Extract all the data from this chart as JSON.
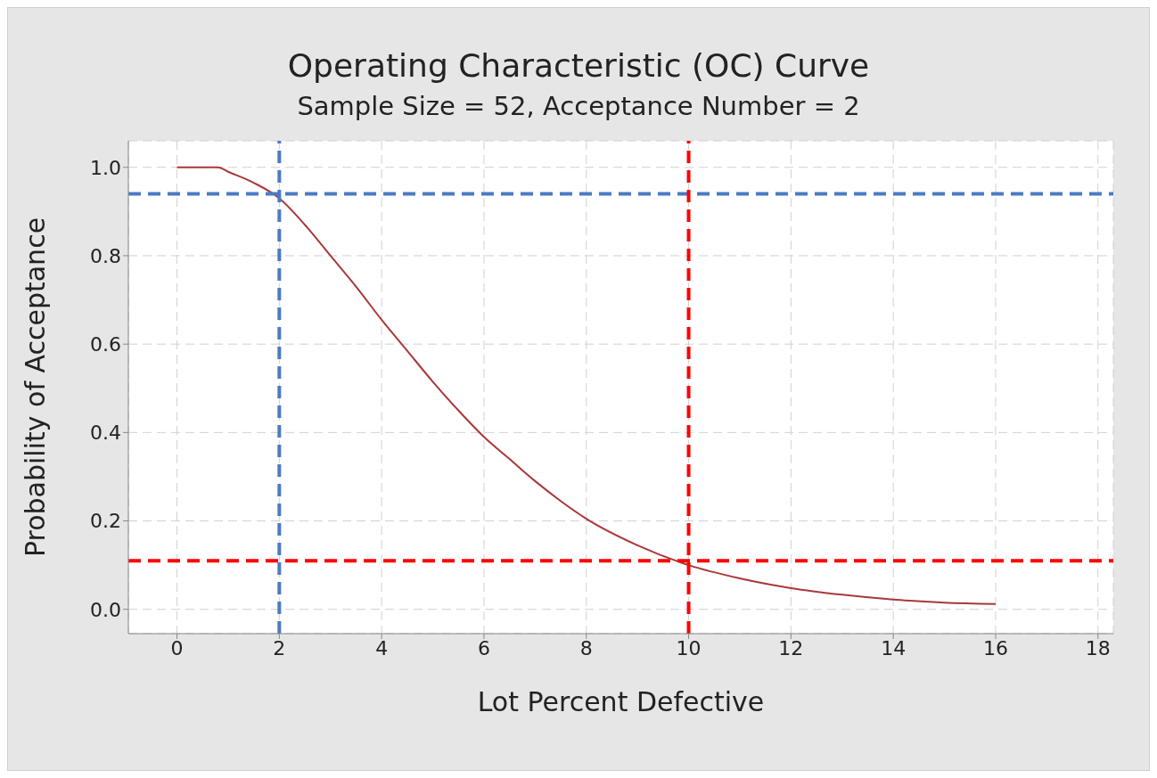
{
  "chart_data": {
    "type": "line",
    "title": "Operating Characteristic (OC) Curve",
    "subtitle": "Sample Size = 52, Acceptance Number = 2",
    "xlabel": "Lot Percent Defective",
    "ylabel": "Probability of Acceptance",
    "x": [
      0,
      0.8,
      1,
      1.5,
      2,
      2.5,
      3,
      3.5,
      4,
      4.5,
      5,
      5.5,
      6,
      6.5,
      7,
      7.5,
      8,
      9,
      10,
      11,
      12,
      13,
      14,
      15,
      16
    ],
    "series": [
      {
        "color": "#a8383a",
        "values": [
          1.0,
          1.0,
          0.99,
          0.965,
          0.93,
          0.87,
          0.8,
          0.73,
          0.655,
          0.585,
          0.515,
          0.45,
          0.39,
          0.34,
          0.29,
          0.245,
          0.205,
          0.145,
          0.1,
          0.07,
          0.048,
          0.033,
          0.022,
          0.015,
          0.012
        ]
      }
    ],
    "xlim": [
      -0.95,
      18.3
    ],
    "xticks": [
      0,
      2,
      4,
      6,
      8,
      10,
      12,
      14,
      16,
      18
    ],
    "ylim": [
      -0.055,
      1.06
    ],
    "yticks": [
      {
        "value": 0,
        "label": "0.0"
      },
      {
        "value": 0.2,
        "label": "0.2"
      },
      {
        "value": 0.4,
        "label": "0.4"
      },
      {
        "value": 0.6,
        "label": "0.6"
      },
      {
        "value": 0.8,
        "label": "0.8"
      },
      {
        "value": 1,
        "label": "1.0"
      }
    ],
    "grid": true,
    "marker": "none",
    "line_style": "solid",
    "ref_lines": [
      {
        "axis": "x",
        "value": 2,
        "color": "#4a7bc4",
        "line_style": "dashed"
      },
      {
        "axis": "y",
        "value": 0.94,
        "color": "#4a7bc4",
        "line_style": "dashed"
      },
      {
        "axis": "x",
        "value": 10,
        "color": "#ff0000",
        "line_style": "dashed"
      },
      {
        "axis": "y",
        "value": 0.11,
        "color": "#ff0000",
        "line_style": "dashed"
      }
    ]
  }
}
